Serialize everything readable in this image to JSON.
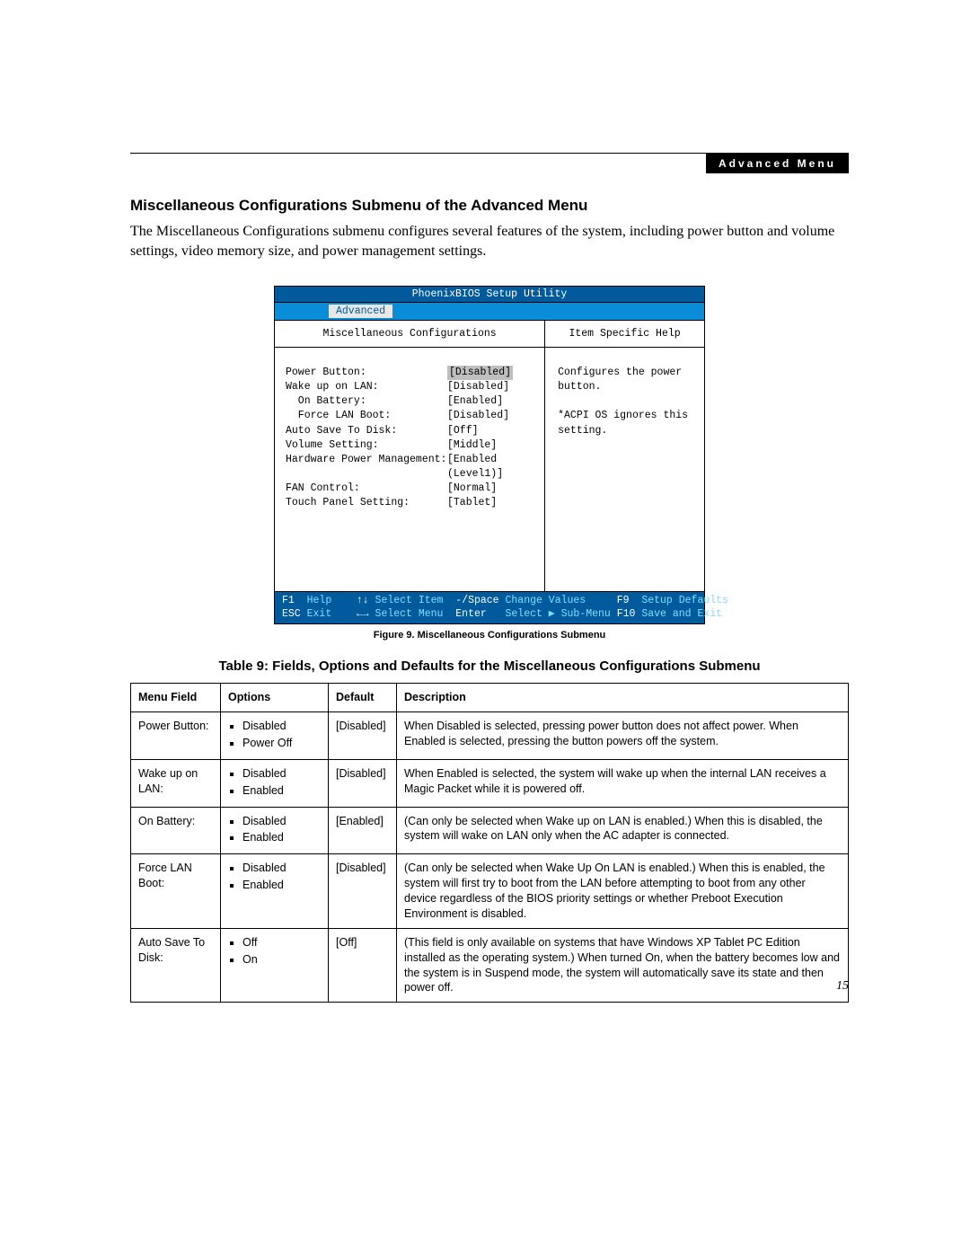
{
  "chapter_badge": "Advanced Menu",
  "section_title": "Miscellaneous Configurations Submenu of the Advanced Menu",
  "intro": "The Miscellaneous Configurations submenu configures several features of the system, including power button and volume settings, video memory size, and power management settings.",
  "bios": {
    "title": "PhoenixBIOS Setup Utility",
    "active_tab": "Advanced",
    "left_header": "Miscellaneous Configurations",
    "right_header": "Item Specific Help",
    "help_lines": [
      "Configures the power",
      "button.",
      "",
      "*ACPI OS ignores this",
      "setting."
    ],
    "items": [
      {
        "label": "Power Button:",
        "indent": 0,
        "value": "[Disabled]",
        "selected": true
      },
      {
        "label": "Wake up on LAN:",
        "indent": 0,
        "value": "[Disabled]",
        "selected": false
      },
      {
        "label": "On Battery:",
        "indent": 1,
        "value": "[Enabled]",
        "selected": false
      },
      {
        "label": "Force LAN Boot:",
        "indent": 1,
        "value": "[Disabled]",
        "selected": false
      },
      {
        "label": "Auto Save To Disk:",
        "indent": 0,
        "value": "[Off]",
        "selected": false
      },
      {
        "label": "Volume Setting:",
        "indent": 0,
        "value": "[Middle]",
        "selected": false
      },
      {
        "label": "Hardware Power Management:",
        "indent": 0,
        "value": "[Enabled (Level1)]",
        "selected": false
      },
      {
        "label": "FAN Control:",
        "indent": 0,
        "value": "[Normal]",
        "selected": false
      },
      {
        "label": "Touch Panel Setting:",
        "indent": 0,
        "value": "[Tablet]",
        "selected": false
      }
    ],
    "footer": {
      "f1": "F1",
      "f1_label": "Help",
      "arr_ud": "↑↓",
      "arr_ud_label": "Select Item",
      "minus_space": "-/Space",
      "minus_space_label": "Change Values",
      "f9": "F9",
      "f9_label": "Setup Defaults",
      "esc": "ESC",
      "esc_label": "Exit",
      "arr_lr": "←→",
      "arr_lr_label": "Select Menu",
      "enter": "Enter",
      "enter_label": "Select ▶ Sub-Menu",
      "f10": "F10",
      "f10_label": "Save and Exit"
    }
  },
  "figure_caption": "Figure 9.  Miscellaneous Configurations Submenu",
  "table_title": "Table 9: Fields, Options and Defaults for the Miscellaneous Configurations Submenu",
  "table": {
    "columns": [
      "Menu Field",
      "Options",
      "Default",
      "Description"
    ],
    "rows": [
      {
        "field": "Power Button:",
        "options": [
          "Disabled",
          "Power Off"
        ],
        "default": "[Disabled]",
        "desc": "When Disabled is selected, pressing power button does not affect power. When Enabled is selected, pressing the button powers off the system."
      },
      {
        "field": "Wake up on LAN:",
        "options": [
          "Disabled",
          "Enabled"
        ],
        "default": "[Disabled]",
        "desc": "When Enabled is selected, the system will wake up when the internal LAN receives a Magic Packet while it is powered off."
      },
      {
        "field": "On Battery:",
        "options": [
          "Disabled",
          "Enabled"
        ],
        "default": "[Enabled]",
        "desc": "(Can only be selected when Wake up on LAN is enabled.) When this is disabled, the system will wake on LAN only when the AC adapter is connected."
      },
      {
        "field": "Force LAN Boot:",
        "options": [
          "Disabled",
          "Enabled"
        ],
        "default": "[Disabled]",
        "desc": "(Can only be selected when Wake Up On LAN is enabled.) When this is enabled, the system will first try to boot from the LAN before attempting to boot from any other device regardless of the BIOS priority settings or whether Preboot Execution Environment is disabled."
      },
      {
        "field": "Auto Save To Disk:",
        "options": [
          "Off",
          "On"
        ],
        "default": "[Off]",
        "desc": "(This field is only available on systems that have Windows XP Tablet PC Edition  installed as the operating system.) When turned On, when the battery becomes low and the system is in Suspend mode, the system will automatically save its state and then power off."
      }
    ]
  },
  "page_number": "15"
}
